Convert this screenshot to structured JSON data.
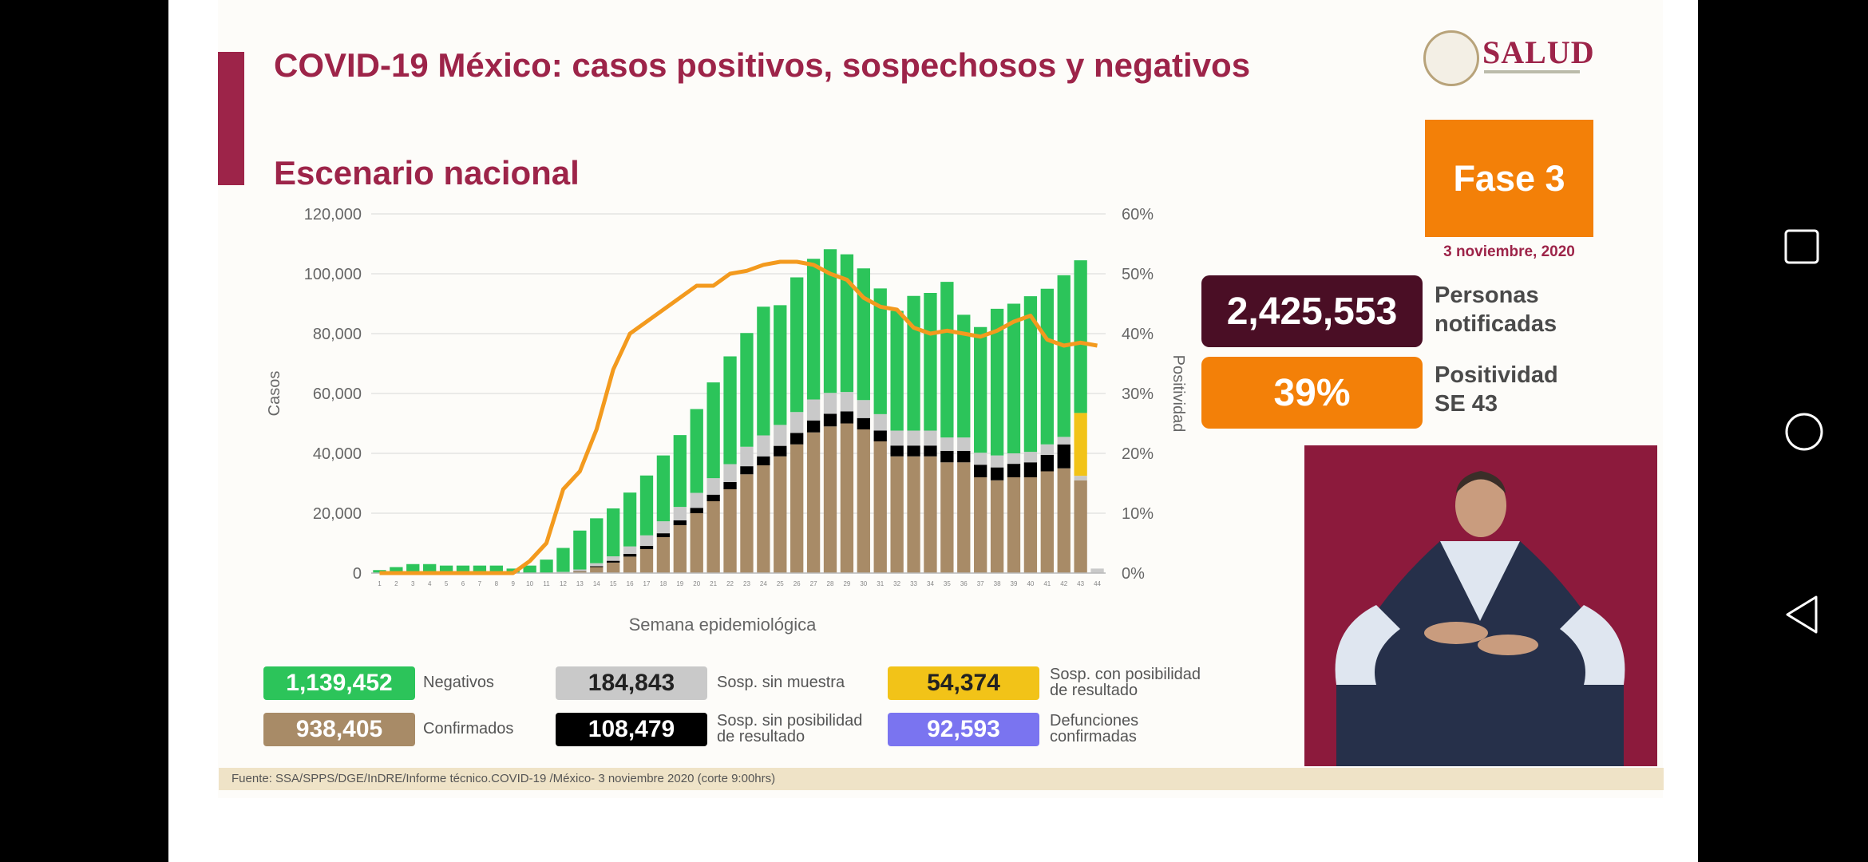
{
  "slide": {
    "title": "COVID-19 México: casos positivos, sospechosos y negativos",
    "subtitle": "Escenario nacional",
    "logo_text": "SALUD",
    "fase": "Fase 3",
    "date": "3 noviembre, 2020",
    "personas_notificadas": {
      "value": "2,425,553",
      "label": "Personas notificadas"
    },
    "positividad": {
      "value": "39%",
      "label": "Positividad SE 43"
    },
    "source": "Fuente: SSA/SPPS/DGE/InDRE/Informe técnico.COVID-19 /México- 3 noviembre 2020 (corte 9:00hrs)"
  },
  "legend": [
    {
      "value": "1,139,452",
      "label": "Negativos",
      "color": "#2cc45a"
    },
    {
      "value": "184,843",
      "label": "Sosp. sin muestra",
      "color": "#c9c9c9"
    },
    {
      "value": "54,374",
      "label": "Sosp. con posibilidad de resultado",
      "color": "#f2c318"
    },
    {
      "value": "938,405",
      "label": "Confirmados",
      "color": "#a88b67"
    },
    {
      "value": "108,479",
      "label": "Sosp. sin posibilidad de resultado",
      "color": "#000000"
    },
    {
      "value": "92,593",
      "label": "Defunciones confirmadas",
      "color": "#7a74f0"
    }
  ],
  "chart_data": {
    "type": "bar",
    "xlabel": "Semana epidemiológica",
    "ylabel": "Casos",
    "y2label": "Positividad",
    "ylim": [
      0,
      120000
    ],
    "y2lim": [
      0,
      60
    ],
    "yticks": [
      "0",
      "20,000",
      "40,000",
      "60,000",
      "80,000",
      "100,000",
      "120,000"
    ],
    "y2ticks": [
      "0%",
      "10%",
      "20%",
      "30%",
      "40%",
      "50%",
      "60%"
    ],
    "categories": [
      "1",
      "2",
      "3",
      "4",
      "5",
      "6",
      "7",
      "8",
      "9",
      "10",
      "11",
      "12",
      "13",
      "14",
      "15",
      "16",
      "17",
      "18",
      "19",
      "20",
      "21",
      "22",
      "23",
      "24",
      "25",
      "26",
      "27",
      "28",
      "29",
      "30",
      "31",
      "32",
      "33",
      "34",
      "35",
      "36",
      "37",
      "38",
      "39",
      "40",
      "41",
      "42",
      "43",
      "44"
    ],
    "series": [
      {
        "name": "Confirmados",
        "color": "#a88b67",
        "values": [
          0,
          0,
          0,
          0,
          0,
          0,
          0,
          0,
          0,
          0,
          0,
          200,
          600,
          2000,
          3500,
          5500,
          8000,
          12000,
          16000,
          20000,
          24000,
          28000,
          33000,
          36000,
          39000,
          43000,
          47000,
          49000,
          50000,
          48000,
          44000,
          39000,
          39000,
          39000,
          37000,
          37000,
          32000,
          31000,
          32000,
          32000,
          34000,
          35000,
          31000,
          0
        ]
      },
      {
        "name": "Sosp. sin posibilidad de resultado",
        "color": "#000000",
        "values": [
          0,
          0,
          0,
          0,
          0,
          0,
          0,
          0,
          0,
          0,
          0,
          0,
          100,
          300,
          600,
          900,
          1100,
          1300,
          1600,
          1800,
          2200,
          2400,
          2700,
          3000,
          3500,
          3800,
          4000,
          4200,
          4000,
          3800,
          3600,
          3600,
          3600,
          3600,
          3800,
          3800,
          4200,
          4300,
          4500,
          5000,
          5500,
          8000,
          0,
          0
        ]
      },
      {
        "name": "Sosp. sin muestra",
        "color": "#c9c9c9",
        "values": [
          0,
          0,
          0,
          0,
          0,
          0,
          0,
          0,
          0,
          0,
          0,
          200,
          500,
          1000,
          1500,
          2500,
          3500,
          4000,
          4500,
          5000,
          5500,
          6000,
          6500,
          7000,
          7000,
          7000,
          7000,
          7000,
          6500,
          6000,
          5500,
          5000,
          5000,
          5000,
          4500,
          4500,
          4000,
          4000,
          3500,
          3500,
          3500,
          2500,
          1500,
          1500
        ]
      },
      {
        "name": "Sosp. con posibilidad de resultado",
        "color": "#f2c318",
        "values": [
          0,
          0,
          0,
          0,
          0,
          0,
          0,
          0,
          0,
          0,
          0,
          0,
          0,
          0,
          0,
          0,
          0,
          0,
          0,
          0,
          0,
          0,
          0,
          0,
          0,
          0,
          0,
          0,
          0,
          0,
          0,
          0,
          0,
          0,
          0,
          0,
          0,
          0,
          0,
          0,
          0,
          0,
          21000,
          0
        ]
      },
      {
        "name": "Negativos",
        "color": "#2cc45a",
        "values": [
          1000,
          2000,
          3000,
          3000,
          2500,
          2500,
          2500,
          2500,
          1500,
          2500,
          4500,
          8000,
          13000,
          15000,
          16000,
          18000,
          20000,
          22000,
          24000,
          28000,
          32000,
          36000,
          38000,
          43000,
          40000,
          45000,
          47000,
          48000,
          46000,
          44000,
          42000,
          40000,
          45000,
          46000,
          52000,
          41000,
          42000,
          49000,
          50000,
          52000,
          52000,
          54000,
          51000,
          0
        ]
      }
    ],
    "positividad": [
      0,
      0,
      0,
      0,
      0,
      0,
      0,
      0,
      0,
      2,
      5,
      14,
      17,
      24,
      34,
      40,
      42,
      44,
      46,
      48,
      48,
      50,
      50.5,
      51.5,
      52,
      52,
      51.5,
      50,
      49,
      46,
      44.5,
      44,
      41,
      40,
      40.5,
      40,
      39.5,
      40.5,
      42,
      43,
      39,
      38,
      38.5,
      38
    ],
    "grid": true
  }
}
